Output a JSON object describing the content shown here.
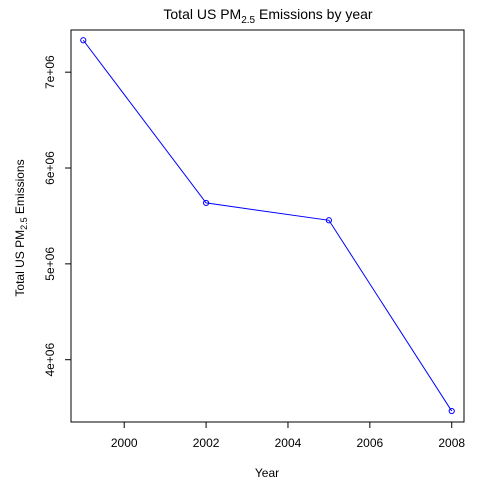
{
  "chart_data": {
    "type": "line",
    "title": {
      "pre": "Total US PM",
      "sub": "2.5",
      "post": " Emissions by year"
    },
    "xlabel": "Year",
    "ylabel": {
      "pre": "Total US  PM",
      "sub": "2.5",
      "post": " Emissions"
    },
    "x": [
      1999,
      2002,
      2005,
      2008
    ],
    "series": [
      {
        "values": [
          7332967,
          5635780,
          5454703,
          3464206
        ]
      }
    ],
    "xlim": [
      1998.7,
      2008.3
    ],
    "ylim": [
      3350000,
      7440000
    ],
    "x_ticks": [
      2000,
      2002,
      2004,
      2006,
      2008
    ],
    "x_tick_labels": [
      "2000",
      "2002",
      "2004",
      "2006",
      "2008"
    ],
    "y_ticks": [
      4000000,
      5000000,
      6000000,
      7000000
    ],
    "y_tick_labels": [
      "4e+06",
      "5e+06",
      "6e+06",
      "7e+06"
    ],
    "line_color": "#0000ff",
    "grid": false,
    "legend": "none"
  }
}
